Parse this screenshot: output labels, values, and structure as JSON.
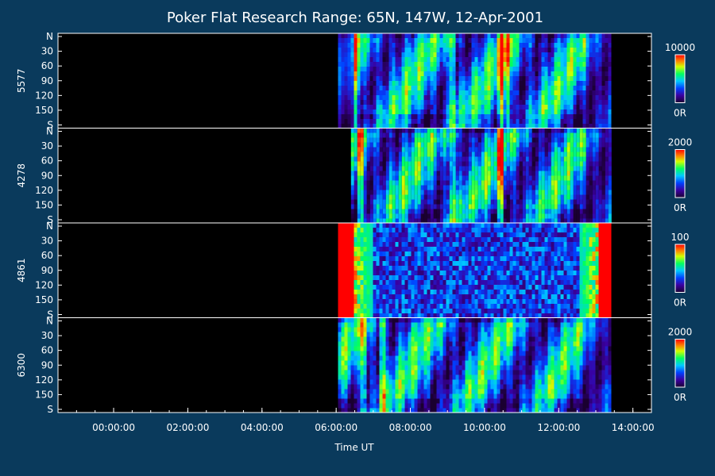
{
  "chart_data": {
    "type": "heatmap",
    "title": "Poker Flat Research Range: 65N, 147W, 12-Apr-2001",
    "xlabel": "Time UT",
    "x_ticks": [
      "00:00:00",
      "02:00:00",
      "04:00:00",
      "06:00:00",
      "08:00:00",
      "10:00:00",
      "12:00:00",
      "14:00:00"
    ],
    "x_range_hours": [
      -1.5,
      14.5
    ],
    "data_time_range_hours": [
      6.05,
      13.4
    ],
    "y_ticks": [
      "N",
      "30",
      "60",
      "90",
      "120",
      "150",
      "S"
    ],
    "y_range": [
      0,
      180
    ],
    "grid": false,
    "colorbar_min_label": "0R",
    "panels": [
      {
        "wavelength": "5577",
        "colorbar_max": "10000",
        "colorbar_max_value": 10000,
        "onset_hours": 6.05,
        "intense_bands_hours": [
          6.5,
          9.1,
          10.4,
          10.6
        ]
      },
      {
        "wavelength": "4278",
        "colorbar_max": "2000",
        "colorbar_max_value": 2000,
        "onset_hours": 6.4,
        "intense_bands_hours": [
          6.6,
          9.1,
          10.4
        ]
      },
      {
        "wavelength": "4861",
        "colorbar_max": "100",
        "colorbar_max_value": 100,
        "onset_hours": 6.05,
        "intense_bands_hours": [
          6.2,
          13.2
        ]
      },
      {
        "wavelength": "6300",
        "colorbar_max": "2000",
        "colorbar_max_value": 2000,
        "onset_hours": 6.05,
        "intense_bands_hours": [
          6.7,
          7.2
        ]
      }
    ]
  }
}
